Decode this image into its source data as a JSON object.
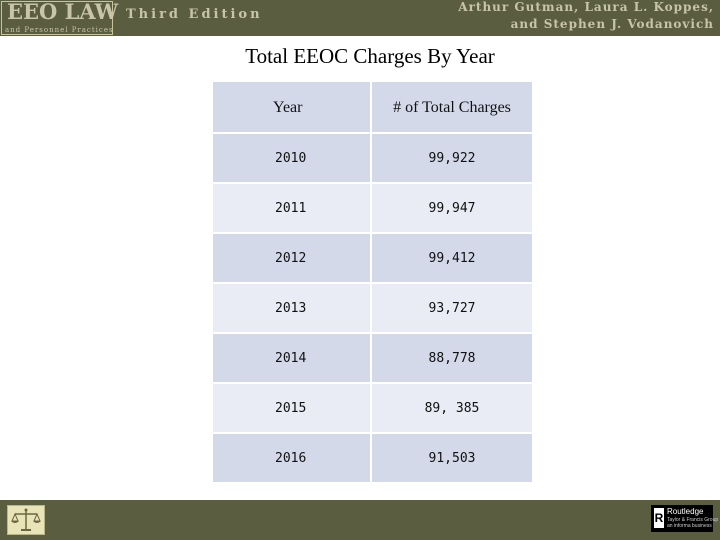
{
  "header": {
    "logo_main": "EEO LAW",
    "logo_sub": "and Personnel Practices",
    "edition": "Third Edition",
    "authors_line1": "Arthur Gutman, Laura L. Koppes,",
    "authors_line2": "and Stephen J. Vodanovich"
  },
  "slide": {
    "title": "Total EEOC Charges By Year"
  },
  "table": {
    "columns": [
      "Year",
      "# of Total Charges"
    ],
    "rows": [
      {
        "year": "2010",
        "count": "99,922"
      },
      {
        "year": "2011",
        "count": "99,947"
      },
      {
        "year": "2012",
        "count": "99,412"
      },
      {
        "year": "2013",
        "count": "93,727"
      },
      {
        "year": "2014",
        "count": "88,778"
      },
      {
        "year": "2015",
        "count": "89, 385"
      },
      {
        "year": "2016",
        "count": "91,503"
      }
    ]
  },
  "footer": {
    "left_icon": "scales-of-justice-icon",
    "publisher_name": "Routledge",
    "publisher_sub1": "Taylor & Francis Group",
    "publisher_sub2": "an informa business"
  }
}
